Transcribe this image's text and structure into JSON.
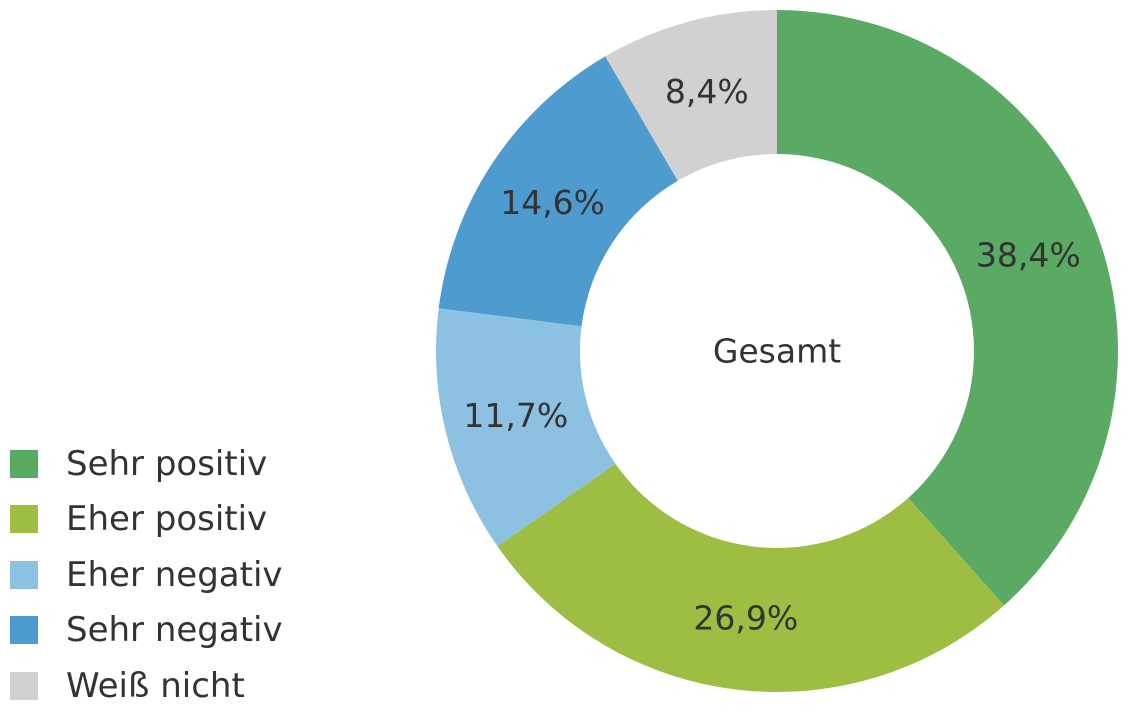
{
  "chart_data": {
    "type": "pie",
    "donut": true,
    "center_label": "Gesamt",
    "categories": [
      "Sehr positiv",
      "Eher positiv",
      "Eher negativ",
      "Sehr negativ",
      "Weiß nicht"
    ],
    "values": [
      38.4,
      26.9,
      11.7,
      14.6,
      8.4
    ],
    "value_labels": [
      "38,4%",
      "26,9%",
      "11,7%",
      "14,6%",
      "8,4%"
    ],
    "colors": [
      "#5aaa64",
      "#9ebe43",
      "#8dc1e2",
      "#4e9bcf",
      "#d1d1d1"
    ],
    "start": "12 o'clock",
    "direction": "clockwise",
    "legend_position": "bottom-left"
  }
}
